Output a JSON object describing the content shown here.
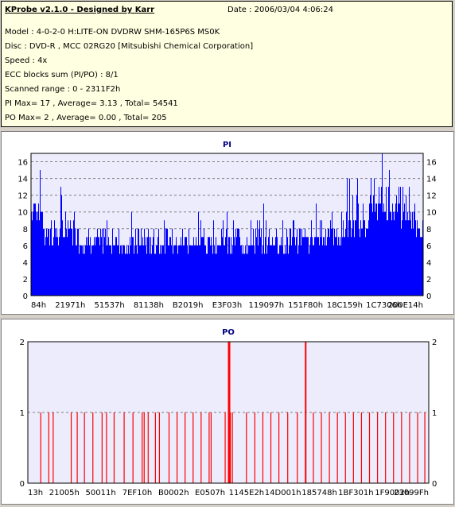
{
  "info": {
    "title": "KProbe v2.1.0 - Designed by Karr",
    "date": "Date : 2006/03/04 4:06:24",
    "lines": [
      "Model : 4-0-2-0 H:LITE-ON DVDRW SHM-165P6S MS0K",
      "Disc : DVD-R , MCC 02RG20   [Mitsubishi Chemical Corporation]",
      "Speed : 4x",
      "ECC blocks sum (PI/PO) : 8/1",
      "Scanned range : 0 - 2311F2h",
      "PI Max= 17 , Average= 3.13 , Total= 54541",
      "PO Max= 2 , Average= 0.00 , Total= 205"
    ]
  },
  "colors": {
    "pi": "#0000ff",
    "po": "#ff0000",
    "plot_bg": "#ececfc",
    "grid": "#808080"
  },
  "chart_data": [
    {
      "type": "bar",
      "title": "PI",
      "ylim": [
        0,
        17
      ],
      "yticks": [
        0,
        2,
        4,
        6,
        8,
        10,
        12,
        14,
        16
      ],
      "x_tick_labels": [
        "84h",
        "21971h",
        "51537h",
        "81138h",
        "B2019h",
        "E3F03h",
        "119097h",
        "151F80h",
        "18C159h",
        "1C7306h",
        "200E14h"
      ],
      "grid": true,
      "segments": [
        {
          "from": 0.0,
          "to": 0.03,
          "base": 9,
          "peak": 15
        },
        {
          "from": 0.03,
          "to": 0.12,
          "base": 6,
          "peak": 13
        },
        {
          "from": 0.12,
          "to": 0.26,
          "base": 5,
          "peak": 10
        },
        {
          "from": 0.26,
          "to": 0.4,
          "base": 5,
          "peak": 10
        },
        {
          "from": 0.4,
          "to": 0.55,
          "base": 5,
          "peak": 11
        },
        {
          "from": 0.55,
          "to": 0.72,
          "base": 5,
          "peak": 11
        },
        {
          "from": 0.72,
          "to": 0.8,
          "base": 6,
          "peak": 13
        },
        {
          "from": 0.8,
          "to": 0.86,
          "base": 7,
          "peak": 15
        },
        {
          "from": 0.86,
          "to": 0.94,
          "base": 9,
          "peak": 17
        },
        {
          "from": 0.94,
          "to": 0.98,
          "base": 8,
          "peak": 15
        },
        {
          "from": 0.98,
          "to": 1.0,
          "base": 7,
          "peak": 11
        }
      ]
    },
    {
      "type": "bar",
      "title": "PO",
      "ylim": [
        0,
        2
      ],
      "yticks": [
        0,
        1,
        2
      ],
      "x_tick_labels": [
        "13h",
        "21005h",
        "50011h",
        "7EF10h",
        "B0002h",
        "E0507h",
        "1145E2h",
        "14D001h",
        "185748h",
        "1BF301h",
        "1F9002h",
        "23099Fh"
      ],
      "grid": true,
      "spikes": [
        {
          "x": 0.032,
          "value": 1
        },
        {
          "x": 0.052,
          "value": 1
        },
        {
          "x": 0.063,
          "value": 1
        },
        {
          "x": 0.108,
          "value": 1
        },
        {
          "x": 0.123,
          "value": 1
        },
        {
          "x": 0.141,
          "value": 1
        },
        {
          "x": 0.162,
          "value": 1
        },
        {
          "x": 0.185,
          "value": 1
        },
        {
          "x": 0.196,
          "value": 1
        },
        {
          "x": 0.215,
          "value": 1
        },
        {
          "x": 0.24,
          "value": 1
        },
        {
          "x": 0.262,
          "value": 1
        },
        {
          "x": 0.285,
          "value": 1
        },
        {
          "x": 0.29,
          "value": 1
        },
        {
          "x": 0.3,
          "value": 1
        },
        {
          "x": 0.318,
          "value": 1
        },
        {
          "x": 0.328,
          "value": 1
        },
        {
          "x": 0.352,
          "value": 1
        },
        {
          "x": 0.372,
          "value": 1
        },
        {
          "x": 0.392,
          "value": 1
        },
        {
          "x": 0.412,
          "value": 1
        },
        {
          "x": 0.432,
          "value": 1
        },
        {
          "x": 0.452,
          "value": 1
        },
        {
          "x": 0.457,
          "value": 1
        },
        {
          "x": 0.492,
          "value": 1
        },
        {
          "x": 0.5,
          "value": 2
        },
        {
          "x": 0.502,
          "value": 2
        },
        {
          "x": 0.505,
          "value": 1
        },
        {
          "x": 0.51,
          "value": 1
        },
        {
          "x": 0.545,
          "value": 1
        },
        {
          "x": 0.566,
          "value": 1
        },
        {
          "x": 0.586,
          "value": 1
        },
        {
          "x": 0.606,
          "value": 1
        },
        {
          "x": 0.626,
          "value": 1
        },
        {
          "x": 0.648,
          "value": 1
        },
        {
          "x": 0.672,
          "value": 1
        },
        {
          "x": 0.692,
          "value": 2
        },
        {
          "x": 0.712,
          "value": 1
        },
        {
          "x": 0.732,
          "value": 1
        },
        {
          "x": 0.752,
          "value": 1
        },
        {
          "x": 0.772,
          "value": 1
        },
        {
          "x": 0.792,
          "value": 1
        },
        {
          "x": 0.812,
          "value": 1
        },
        {
          "x": 0.832,
          "value": 1
        },
        {
          "x": 0.852,
          "value": 1
        },
        {
          "x": 0.872,
          "value": 1
        },
        {
          "x": 0.892,
          "value": 1
        },
        {
          "x": 0.912,
          "value": 1
        },
        {
          "x": 0.932,
          "value": 1
        },
        {
          "x": 0.952,
          "value": 1
        },
        {
          "x": 0.972,
          "value": 1
        },
        {
          "x": 0.99,
          "value": 1
        }
      ]
    }
  ]
}
